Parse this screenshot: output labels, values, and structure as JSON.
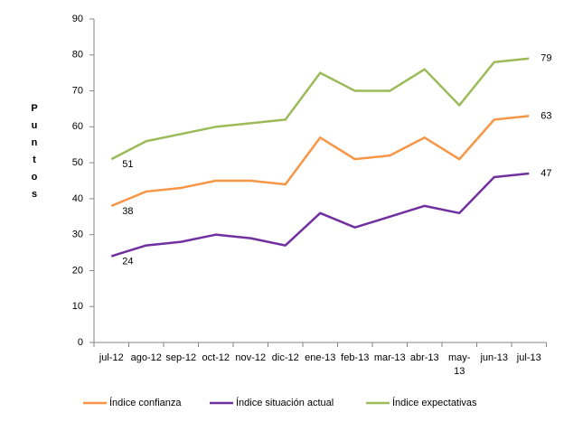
{
  "chart_data": {
    "type": "line",
    "y_label": "Puntos",
    "categories": [
      "jul-12",
      "ago-12",
      "sep-12",
      "oct-12",
      "nov-12",
      "dic-12",
      "ene-13",
      "feb-13",
      "mar-13",
      "abr-13",
      "may-13",
      "jun-13",
      "jul-13"
    ],
    "series": [
      {
        "name": "Índice confianza",
        "color": "#f79646",
        "values": [
          38,
          42,
          43,
          45,
          45,
          44,
          57,
          51,
          52,
          57,
          51,
          62,
          63
        ],
        "value_labels": [
          "38",
          null,
          null,
          null,
          null,
          null,
          null,
          null,
          null,
          null,
          null,
          null,
          "63"
        ]
      },
      {
        "name": "Índice situación actual",
        "color": "#7030a0",
        "values": [
          24,
          27,
          28,
          30,
          29,
          27,
          36,
          32,
          35,
          38,
          36,
          46,
          47
        ],
        "value_labels": [
          "24",
          null,
          null,
          null,
          null,
          null,
          null,
          null,
          null,
          null,
          null,
          null,
          "47"
        ]
      },
      {
        "name": "Índice expectativas",
        "color": "#9bbb59",
        "values": [
          51,
          56,
          58,
          60,
          61,
          62,
          75,
          70,
          70,
          76,
          66,
          78,
          79
        ],
        "value_labels": [
          "51",
          null,
          null,
          null,
          null,
          null,
          null,
          null,
          null,
          null,
          null,
          null,
          "79"
        ]
      }
    ],
    "ylim": [
      0,
      90
    ],
    "yticks": [
      0,
      10,
      20,
      30,
      40,
      50,
      60,
      70,
      80,
      90
    ],
    "legend": "bottom"
  }
}
